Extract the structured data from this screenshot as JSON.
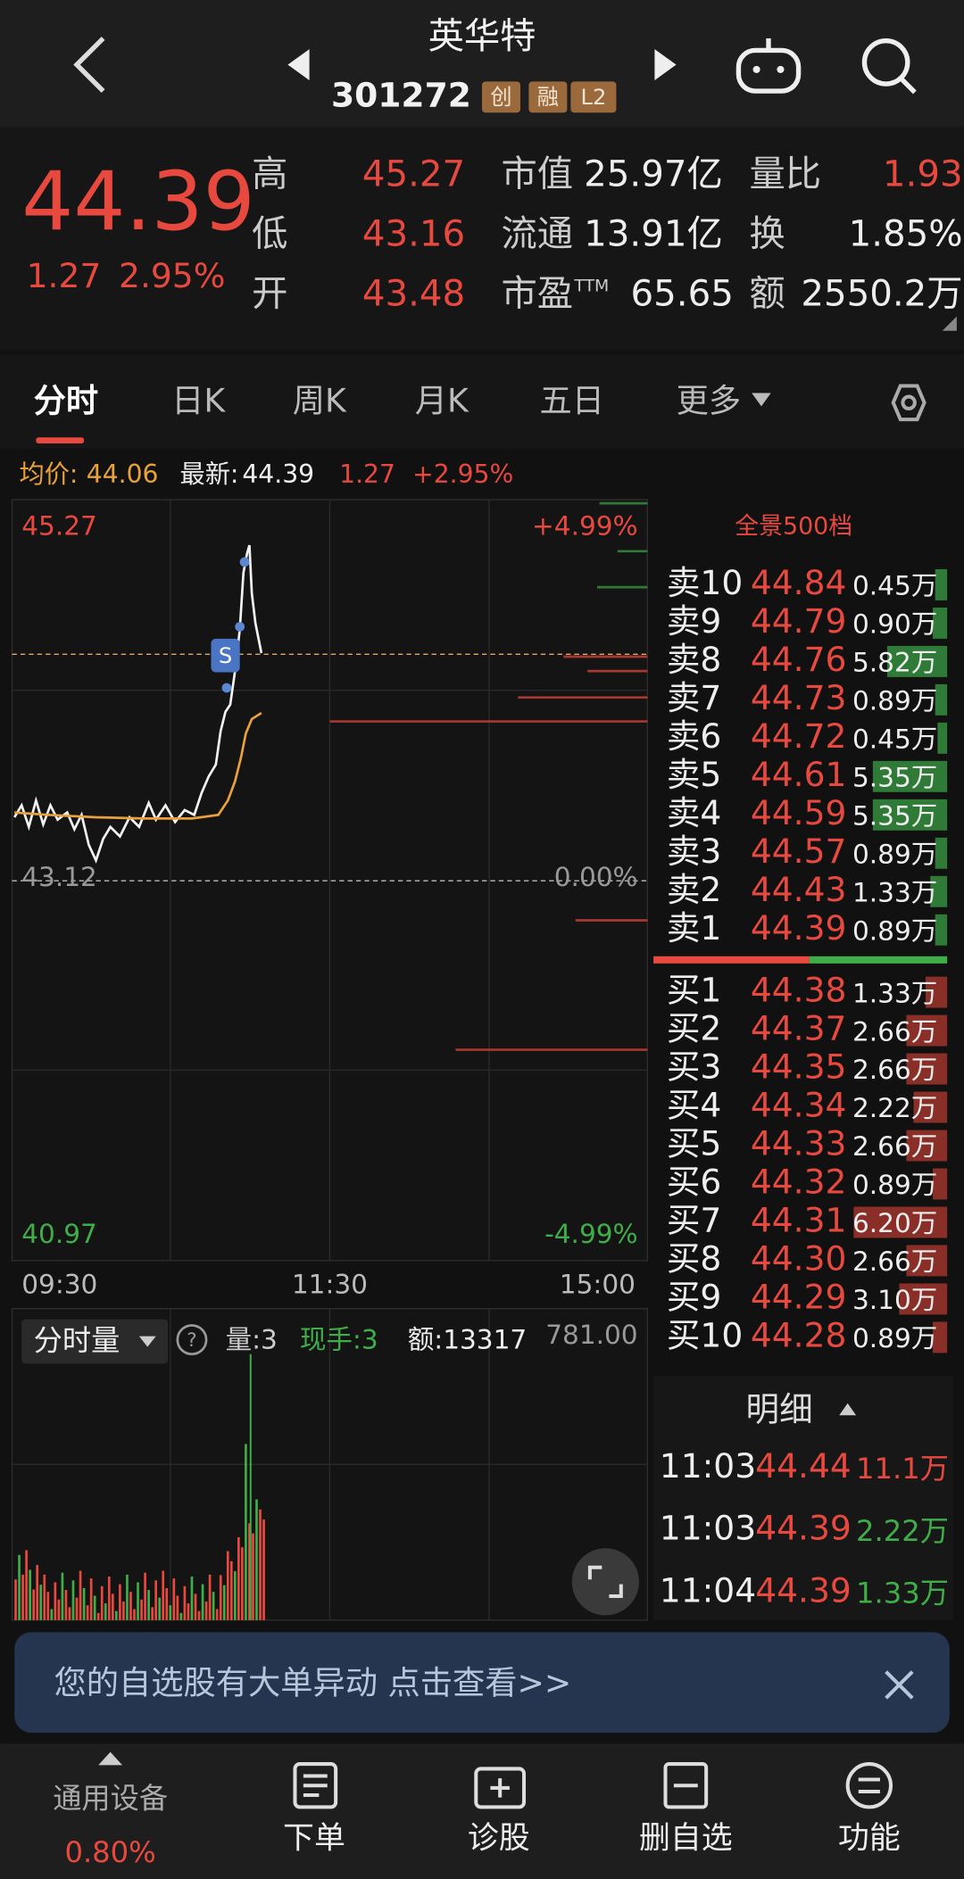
{
  "header": {
    "name": "英华特",
    "code": "301272",
    "badges": [
      "创",
      "融",
      "L2"
    ]
  },
  "quote": {
    "price": "44.39",
    "change": "1.27",
    "pct": "2.95%",
    "left": [
      {
        "label": "高",
        "value": "45.27"
      },
      {
        "label": "低",
        "value": "43.16"
      },
      {
        "label": "开",
        "value": "43.48"
      }
    ],
    "mid": [
      {
        "label": "市值",
        "value": "25.97亿"
      },
      {
        "label": "流通",
        "value": "13.91亿"
      },
      {
        "label": "市盈",
        "sup": "TTM",
        "value": "65.65"
      }
    ],
    "right": [
      {
        "label": "量比",
        "value": "1.93"
      },
      {
        "label": "换",
        "value": "1.85%"
      },
      {
        "label": "额",
        "value": "2550.2万"
      }
    ]
  },
  "tabs": [
    "分时",
    "日K",
    "周K",
    "月K",
    "五日",
    "更多"
  ],
  "info_bar": {
    "avg_label": "均价:",
    "avg": "44.06",
    "latest_label": "最新:",
    "latest": "44.39",
    "change": "1.27",
    "pct": "+2.95%"
  },
  "chart_labels": {
    "high": "45.27",
    "high_pct": "+4.99%",
    "base": "43.12",
    "base_pct": "0.00%",
    "low": "40.97",
    "low_pct": "-4.99%",
    "times": [
      "09:30",
      "11:30",
      "15:00"
    ],
    "marker": "S"
  },
  "volume": {
    "selector": "分时量",
    "help": "?",
    "qty": "量:3",
    "hand": "现手:3",
    "amount": "额:13317",
    "max": "781.00"
  },
  "order_book": {
    "title": "全景500档",
    "asks": [
      [
        "卖10",
        "44.84",
        "0.45万"
      ],
      [
        "卖9",
        "44.79",
        "0.90万"
      ],
      [
        "卖8",
        "44.76",
        "5.82万"
      ],
      [
        "卖7",
        "44.73",
        "0.89万"
      ],
      [
        "卖6",
        "44.72",
        "0.45万"
      ],
      [
        "卖5",
        "44.61",
        "5.35万"
      ],
      [
        "卖4",
        "44.59",
        "5.35万"
      ],
      [
        "卖3",
        "44.57",
        "0.89万"
      ],
      [
        "卖2",
        "44.43",
        "1.33万"
      ],
      [
        "卖1",
        "44.39",
        "0.89万"
      ]
    ],
    "bids": [
      [
        "买1",
        "44.38",
        "1.33万"
      ],
      [
        "买2",
        "44.37",
        "2.66万"
      ],
      [
        "买3",
        "44.35",
        "2.66万"
      ],
      [
        "买4",
        "44.34",
        "2.22万"
      ],
      [
        "买5",
        "44.33",
        "2.66万"
      ],
      [
        "买6",
        "44.32",
        "0.89万"
      ],
      [
        "买7",
        "44.31",
        "6.20万"
      ],
      [
        "买8",
        "44.30",
        "2.66万"
      ],
      [
        "买9",
        "44.29",
        "3.10万"
      ],
      [
        "买10",
        "44.28",
        "0.89万"
      ]
    ]
  },
  "detail": {
    "title": "明细",
    "rows": [
      [
        "11:03",
        "44.44",
        "11.1万"
      ],
      [
        "11:03",
        "44.39",
        "2.22万"
      ],
      [
        "11:04",
        "44.39",
        "1.33万"
      ]
    ]
  },
  "banner": "您的自选股有大单异动 点击查看>>",
  "nav": {
    "device": "通用设备",
    "device_pct": "0.80%",
    "items": [
      "下单",
      "诊股",
      "删自选",
      "功能"
    ]
  }
}
